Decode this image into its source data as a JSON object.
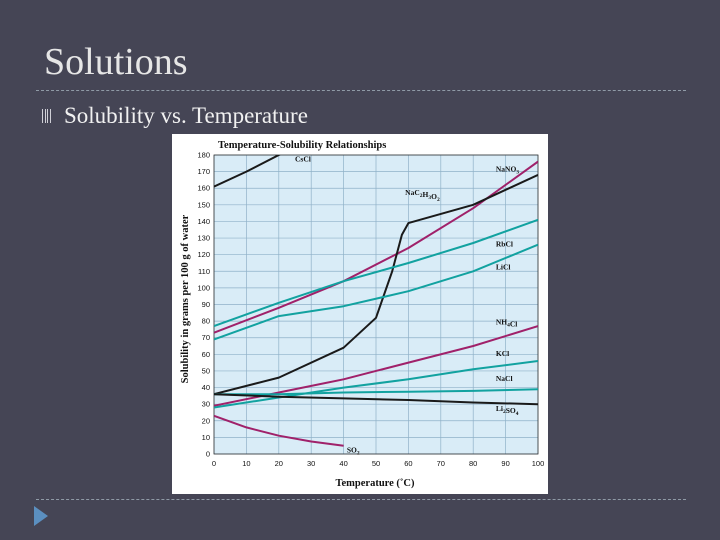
{
  "slide": {
    "title": "Solutions",
    "bullet": "Solubility vs. Temperature"
  },
  "colors": {
    "background": "#454555",
    "plot_background": "#d9ecf7",
    "grid": "#8fb1c8",
    "black_series": "#1a1a1a",
    "magenta_series": "#a0216a",
    "teal_series": "#12a2a0"
  },
  "icons": {
    "bullet": "bullet-glyph",
    "nav": "triangle-right-icon"
  },
  "chart_data": {
    "type": "line",
    "title": "Temperature-Solubility Relationships",
    "xlabel": "Temperature (˚C)",
    "ylabel": "Solubility in grams per 100 g of water",
    "xlim": [
      0,
      100
    ],
    "ylim": [
      0,
      180
    ],
    "x_ticks": [
      0,
      10,
      20,
      30,
      40,
      50,
      60,
      70,
      80,
      90,
      100
    ],
    "y_ticks": [
      0,
      10,
      20,
      30,
      40,
      50,
      60,
      70,
      80,
      90,
      100,
      110,
      120,
      130,
      140,
      150,
      160,
      170,
      180
    ],
    "grid": true,
    "series": [
      {
        "name": "CsCl",
        "color": "#1a1a1a",
        "x": [
          0,
          10,
          20,
          25
        ],
        "y": [
          161,
          170,
          180,
          186
        ]
      },
      {
        "name": "NaNO3",
        "color": "#a0216a",
        "x": [
          0,
          20,
          40,
          60,
          80,
          100
        ],
        "y": [
          73,
          88,
          104,
          124,
          148,
          176
        ]
      },
      {
        "name": "NaC2H3O2",
        "color": "#1a1a1a",
        "x": [
          0,
          20,
          40,
          50,
          55,
          58,
          60,
          80,
          100
        ],
        "y": [
          36,
          46,
          64,
          82,
          110,
          132,
          139,
          150,
          168
        ]
      },
      {
        "name": "RbCl",
        "color": "#12a2a0",
        "x": [
          0,
          20,
          40,
          60,
          80,
          100
        ],
        "y": [
          77,
          91,
          104,
          115,
          127,
          141
        ]
      },
      {
        "name": "LiCl",
        "color": "#12a2a0",
        "x": [
          0,
          20,
          40,
          60,
          80,
          100
        ],
        "y": [
          69,
          83,
          89,
          98,
          110,
          126
        ]
      },
      {
        "name": "NH4Cl",
        "color": "#a0216a",
        "x": [
          0,
          20,
          40,
          60,
          80,
          100
        ],
        "y": [
          29,
          37,
          45,
          55,
          65,
          77
        ]
      },
      {
        "name": "KCl",
        "color": "#12a2a0",
        "x": [
          0,
          20,
          40,
          60,
          80,
          100
        ],
        "y": [
          28,
          34,
          40,
          45,
          51,
          56
        ]
      },
      {
        "name": "NaCl",
        "color": "#12a2a0",
        "x": [
          0,
          20,
          40,
          60,
          80,
          100
        ],
        "y": [
          36,
          36,
          37,
          37.5,
          38,
          39
        ]
      },
      {
        "name": "Li2SO4",
        "color": "#1a1a1a",
        "x": [
          0,
          20,
          40,
          60,
          80,
          100
        ],
        "y": [
          36,
          34.5,
          33.5,
          32.5,
          31,
          30
        ]
      },
      {
        "name": "SO2",
        "color": "#a0216a",
        "x": [
          0,
          10,
          20,
          30,
          40
        ],
        "y": [
          23,
          16,
          11,
          7.5,
          5
        ]
      }
    ],
    "labels": [
      {
        "text": "CsCl",
        "x": 25,
        "y": 176
      },
      {
        "text": "NaNO3",
        "x": 87,
        "y": 170
      },
      {
        "text": "NaC2H3O2",
        "x": 59,
        "y": 156
      },
      {
        "text": "RbCl",
        "x": 87,
        "y": 125
      },
      {
        "text": "LiCl",
        "x": 87,
        "y": 111
      },
      {
        "text": "NH4Cl",
        "x": 87,
        "y": 78
      },
      {
        "text": "KCl",
        "x": 87,
        "y": 59
      },
      {
        "text": "NaCl",
        "x": 87,
        "y": 44
      },
      {
        "text": "Li2SO4",
        "x": 87,
        "y": 26
      },
      {
        "text": "SO2",
        "x": 41,
        "y": 1
      }
    ]
  }
}
